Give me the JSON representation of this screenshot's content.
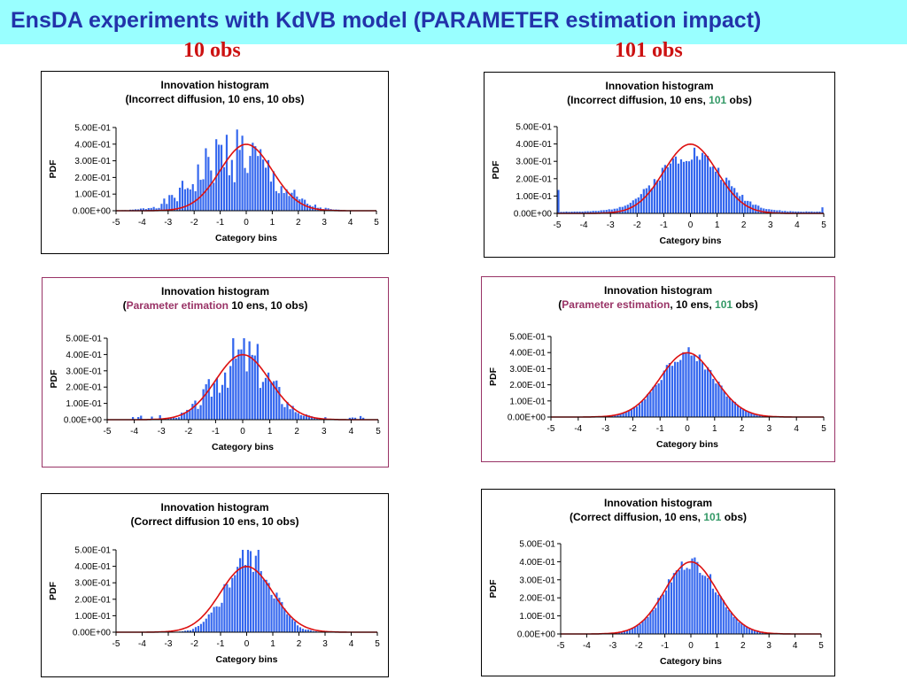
{
  "slide": {
    "title": "EnsDA experiments with KdVB model (PARAMETER estimation impact)",
    "columns": [
      "10 obs",
      "101 obs"
    ]
  },
  "colors": {
    "banner": "#99ffff",
    "title_text": "#2233aa",
    "column_header": "#cc1111",
    "bars": "#3366ee",
    "curve": "#dd1111",
    "highlight_frame": "#993366",
    "parameter_text": "#993366",
    "obs_count_text": "#339966"
  },
  "chart_data": [
    {
      "type": "bar",
      "bars_shape": "histogram_skewed_negative",
      "seed": 1,
      "title": "Innovation histogram",
      "subtitle": "(Incorrect diffusion, 10 ens, 10 obs)",
      "subtitle_parts": [
        {
          "text": "(Incorrect diffusion, 10 ens, 10 obs)",
          "style": "plain"
        }
      ],
      "xlabel": "Category bins",
      "ylabel": "PDF",
      "xlim": [
        -5,
        5
      ],
      "ylim": [
        0,
        0.5
      ],
      "xticks": [
        "-5",
        "-4",
        "-3",
        "-2",
        "-1",
        "0",
        "1",
        "2",
        "3",
        "4",
        "5"
      ],
      "yticks": [
        "0.00E+00",
        "1.00E-01",
        "2.00E-01",
        "3.00E-01",
        "4.00E-01",
        "5.00E-01"
      ],
      "curve": {
        "type": "normal",
        "mean": 0,
        "sd": 1
      },
      "frame": "plain"
    },
    {
      "type": "bar",
      "bars_shape": "histogram_broad",
      "seed": 2,
      "title": "Innovation histogram",
      "subtitle": "(Incorrect diffusion, 10 ens, 101 obs)",
      "subtitle_parts": [
        {
          "text": "(Incorrect diffusion, 10 ens, ",
          "style": "plain"
        },
        {
          "text": "101",
          "style": "green"
        },
        {
          "text": " obs)",
          "style": "plain"
        }
      ],
      "xlabel": "Category bins",
      "ylabel": "PDF",
      "xlim": [
        -5,
        5
      ],
      "ylim": [
        0,
        0.5
      ],
      "xticks": [
        "-5",
        "-4",
        "-3",
        "-2",
        "-1",
        "0",
        "1",
        "2",
        "3",
        "4",
        "5"
      ],
      "yticks": [
        "0.00E+00",
        "1.00E-01",
        "2.00E-01",
        "3.00E-01",
        "4.00E-01",
        "5.00E-01"
      ],
      "curve": {
        "type": "normal",
        "mean": 0,
        "sd": 1
      },
      "frame": "plain"
    },
    {
      "type": "bar",
      "bars_shape": "histogram_noisy_normal",
      "seed": 3,
      "title": "Innovation histogram",
      "subtitle": "(Parameter etimation 10 ens, 10 obs)",
      "subtitle_parts": [
        {
          "text": "(",
          "style": "plain"
        },
        {
          "text": "Parameter etimation",
          "style": "accent"
        },
        {
          "text": " 10 ens, 10 obs)",
          "style": "plain"
        }
      ],
      "xlabel": "Category bins",
      "ylabel": "PDF",
      "xlim": [
        -5,
        5
      ],
      "ylim": [
        0,
        0.5
      ],
      "xticks": [
        "-5",
        "-4",
        "-3",
        "-2",
        "-1",
        "0",
        "1",
        "2",
        "3",
        "4",
        "5"
      ],
      "yticks": [
        "0.00E+00",
        "1.00E-01",
        "2.00E-01",
        "3.00E-01",
        "4.00E-01",
        "5.00E-01"
      ],
      "curve": {
        "type": "normal",
        "mean": 0,
        "sd": 1
      },
      "frame": "highlight"
    },
    {
      "type": "bar",
      "bars_shape": "histogram_close_normal",
      "seed": 4,
      "title": "Innovation histogram",
      "subtitle": "(Parameter estimation, 10 ens, 101 obs)",
      "subtitle_parts": [
        {
          "text": "(",
          "style": "plain"
        },
        {
          "text": "Parameter estimation",
          "style": "accent"
        },
        {
          "text": ", 10 ens, ",
          "style": "plain"
        },
        {
          "text": "101",
          "style": "green"
        },
        {
          "text": " obs)",
          "style": "plain"
        }
      ],
      "xlabel": "Category bins",
      "ylabel": "PDF",
      "xlim": [
        -5,
        5
      ],
      "ylim": [
        0,
        0.5
      ],
      "xticks": [
        "-5",
        "-4",
        "-3",
        "-2",
        "-1",
        "0",
        "1",
        "2",
        "3",
        "4",
        "5"
      ],
      "yticks": [
        "0.00E+00",
        "1.00E-01",
        "2.00E-01",
        "3.00E-01",
        "4.00E-01",
        "5.00E-01"
      ],
      "curve": {
        "type": "normal",
        "mean": 0,
        "sd": 1
      },
      "frame": "highlight"
    },
    {
      "type": "bar",
      "bars_shape": "histogram_peaked_normal",
      "seed": 5,
      "title": "Innovation histogram",
      "subtitle": "(Correct diffusion 10 ens, 10 obs)",
      "subtitle_parts": [
        {
          "text": "(Correct diffusion 10 ens, 10 obs)",
          "style": "plain"
        }
      ],
      "xlabel": "Category bins",
      "ylabel": "PDF",
      "xlim": [
        -5,
        5
      ],
      "ylim": [
        0,
        0.5
      ],
      "xticks": [
        "-5",
        "-4",
        "-3",
        "-2",
        "-1",
        "0",
        "1",
        "2",
        "3",
        "4",
        "5"
      ],
      "yticks": [
        "0.00E+00",
        "1.00E-01",
        "2.00E-01",
        "3.00E-01",
        "4.00E-01",
        "5.00E-01"
      ],
      "curve": {
        "type": "normal",
        "mean": 0,
        "sd": 1
      },
      "frame": "plain"
    },
    {
      "type": "bar",
      "bars_shape": "histogram_close_normal",
      "seed": 6,
      "title": "Innovation histogram",
      "subtitle": "(Correct diffusion, 10 ens, 101 obs)",
      "subtitle_parts": [
        {
          "text": "(Correct diffusion, 10 ens, ",
          "style": "plain"
        },
        {
          "text": "101",
          "style": "green"
        },
        {
          "text": " obs)",
          "style": "plain"
        }
      ],
      "xlabel": "Category bins",
      "ylabel": "PDF",
      "xlim": [
        -5,
        5
      ],
      "ylim": [
        0,
        0.5
      ],
      "xticks": [
        "-5",
        "-4",
        "-3",
        "-2",
        "-1",
        "0",
        "1",
        "2",
        "3",
        "4",
        "5"
      ],
      "yticks": [
        "0.00E+00",
        "1.00E-01",
        "2.00E-01",
        "3.00E-01",
        "4.00E-01",
        "5.00E-01"
      ],
      "curve": {
        "type": "normal",
        "mean": 0,
        "sd": 1
      },
      "frame": "plain"
    }
  ]
}
